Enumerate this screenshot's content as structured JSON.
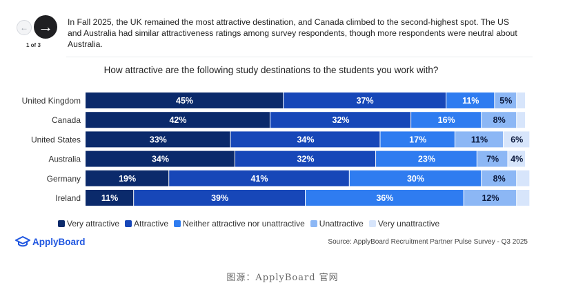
{
  "nav": {
    "prev_icon": "arrow-left-icon",
    "next_icon": "arrow-right-icon",
    "page_label": "1 of 3"
  },
  "description": "In Fall 2025, the UK remained the most attractive destination, and Canada climbed to the second-highest spot. The US and Australia had similar attractiveness ratings among survey respondents, though more respondents were neutral about Australia.",
  "chart_data": {
    "type": "bar",
    "orientation": "horizontal",
    "stacked": "100%",
    "title": "How attractive are the following study destinations to the students you work with?",
    "categories": [
      "United Kingdom",
      "Canada",
      "United States",
      "Australia",
      "Germany",
      "Ireland"
    ],
    "series": [
      {
        "name": "Very attractive",
        "color": "#0b2a6b",
        "text_color": "#ffffff",
        "values": [
          45,
          42,
          33,
          34,
          19,
          11
        ]
      },
      {
        "name": "Attractive",
        "color": "#1747b8",
        "text_color": "#ffffff",
        "values": [
          37,
          32,
          34,
          32,
          41,
          39
        ]
      },
      {
        "name": "Neither attractive nor unattractive",
        "color": "#2f7cf0",
        "text_color": "#ffffff",
        "values": [
          11,
          16,
          17,
          23,
          30,
          36
        ]
      },
      {
        "name": "Unattractive",
        "color": "#8cb7f5",
        "text_color": "#0d1b3e",
        "values": [
          5,
          8,
          11,
          7,
          8,
          12
        ]
      },
      {
        "name": "Very unattractive",
        "color": "#d7e5fb",
        "text_color": "#0d1b3e",
        "values": [
          2,
          2,
          6,
          4,
          3,
          3
        ]
      }
    ],
    "hidden_labels": [
      [
        false,
        false,
        false,
        false,
        true
      ],
      [
        false,
        false,
        false,
        false,
        true
      ],
      [
        false,
        false,
        false,
        false,
        false
      ],
      [
        false,
        false,
        false,
        false,
        false
      ],
      [
        false,
        false,
        false,
        false,
        true
      ],
      [
        false,
        false,
        false,
        false,
        true
      ]
    ],
    "value_suffix": "%",
    "xlim": [
      0,
      100
    ],
    "legend_position": "bottom"
  },
  "branding": {
    "logo_text": "ApplyBoard",
    "logo_icon": "graduation-cap-icon"
  },
  "source": "Source: ApplyBoard Recruitment Partner Pulse Survey - Q3 2025",
  "credit": "图源：ApplyBoard 官网"
}
